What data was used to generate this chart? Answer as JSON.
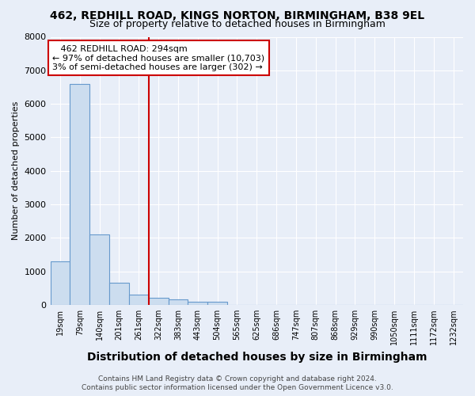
{
  "title1": "462, REDHILL ROAD, KINGS NORTON, BIRMINGHAM, B38 9EL",
  "title2": "Size of property relative to detached houses in Birmingham",
  "xlabel": "Distribution of detached houses by size in Birmingham",
  "ylabel": "Number of detached properties",
  "footer1": "Contains HM Land Registry data © Crown copyright and database right 2024.",
  "footer2": "Contains public sector information licensed under the Open Government Licence v3.0.",
  "annotation_line1": "   462 REDHILL ROAD: 294sqm",
  "annotation_line2": "← 97% of detached houses are smaller (10,703)",
  "annotation_line3": "3% of semi-detached houses are larger (302) →",
  "bar_categories": [
    "19sqm",
    "79sqm",
    "140sqm",
    "201sqm",
    "261sqm",
    "322sqm",
    "383sqm",
    "443sqm",
    "504sqm",
    "565sqm",
    "625sqm",
    "686sqm",
    "747sqm",
    "807sqm",
    "868sqm",
    "929sqm",
    "990sqm",
    "1050sqm",
    "1111sqm",
    "1172sqm",
    "1232sqm"
  ],
  "bar_values": [
    1300,
    6600,
    2100,
    650,
    300,
    200,
    150,
    100,
    100,
    0,
    0,
    0,
    0,
    0,
    0,
    0,
    0,
    0,
    0,
    0,
    0
  ],
  "bar_color": "#ccddef",
  "bar_edge_color": "#6699cc",
  "red_line_bin_index": 4,
  "ylim": [
    0,
    8000
  ],
  "yticks": [
    0,
    1000,
    2000,
    3000,
    4000,
    5000,
    6000,
    7000,
    8000
  ],
  "background_color": "#e8eef8",
  "plot_bg_color": "#e8eef8",
  "grid_color": "#ffffff",
  "annotation_box_color": "#ffffff",
  "annotation_border_color": "#cc0000",
  "red_line_color": "#cc0000",
  "title1_fontsize": 10,
  "title2_fontsize": 9,
  "xlabel_fontsize": 10,
  "ylabel_fontsize": 8,
  "annotation_fontsize": 8,
  "footer_fontsize": 6.5
}
